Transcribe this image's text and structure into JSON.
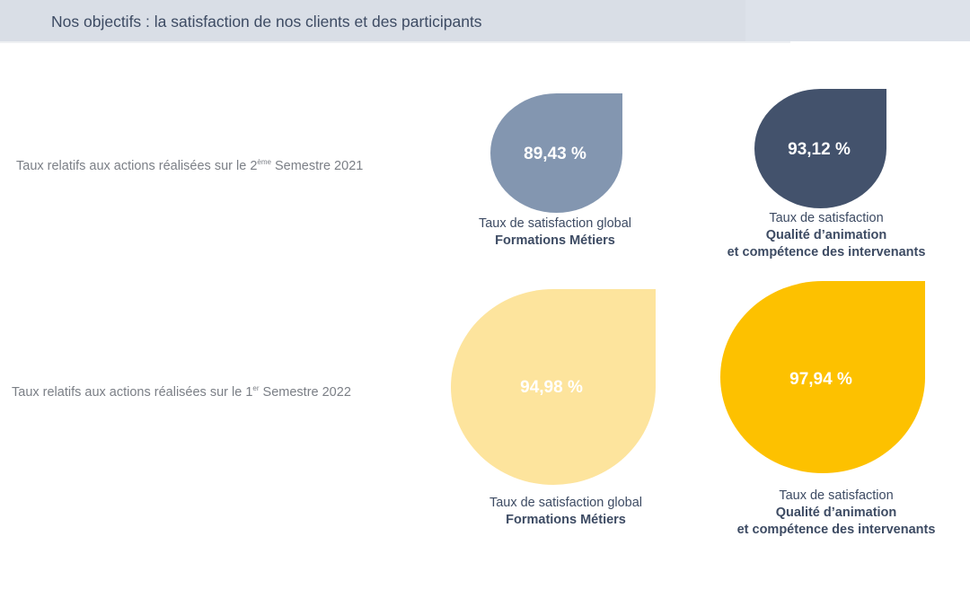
{
  "header": {
    "title": "Nos objectifs : la satisfaction de nos clients et des participants"
  },
  "rows": [
    {
      "label_before": "Taux relatifs aux actions réalisées sur le 2",
      "label_sup": "ème",
      "label_after": " Semestre 2021"
    },
    {
      "label_before": "Taux relatifs aux actions réalisées sur le 1",
      "label_sup": "er",
      "label_after": " Semestre 2022"
    }
  ],
  "cards": [
    {
      "value": "89,43 %",
      "color": "#8396b0",
      "caption_line1": "Taux de satisfaction global",
      "caption_line2": "Formations Métiers",
      "caption_line3": ""
    },
    {
      "value": "93,12 %",
      "color": "#43526c",
      "caption_line1": "Taux de satisfaction",
      "caption_line2": "Qualité d’animation",
      "caption_line3": "et compétence des intervenants"
    },
    {
      "value": "94,98 %",
      "color": "#fde49d",
      "caption_line1": "Taux de satisfaction global",
      "caption_line2": "Formations Métiers",
      "caption_line3": ""
    },
    {
      "value": "97,94 %",
      "color": "#fdc100",
      "caption_line1": "Taux de satisfaction",
      "caption_line2": "Qualité d’animation",
      "caption_line3": "et compétence des intervenants"
    }
  ]
}
